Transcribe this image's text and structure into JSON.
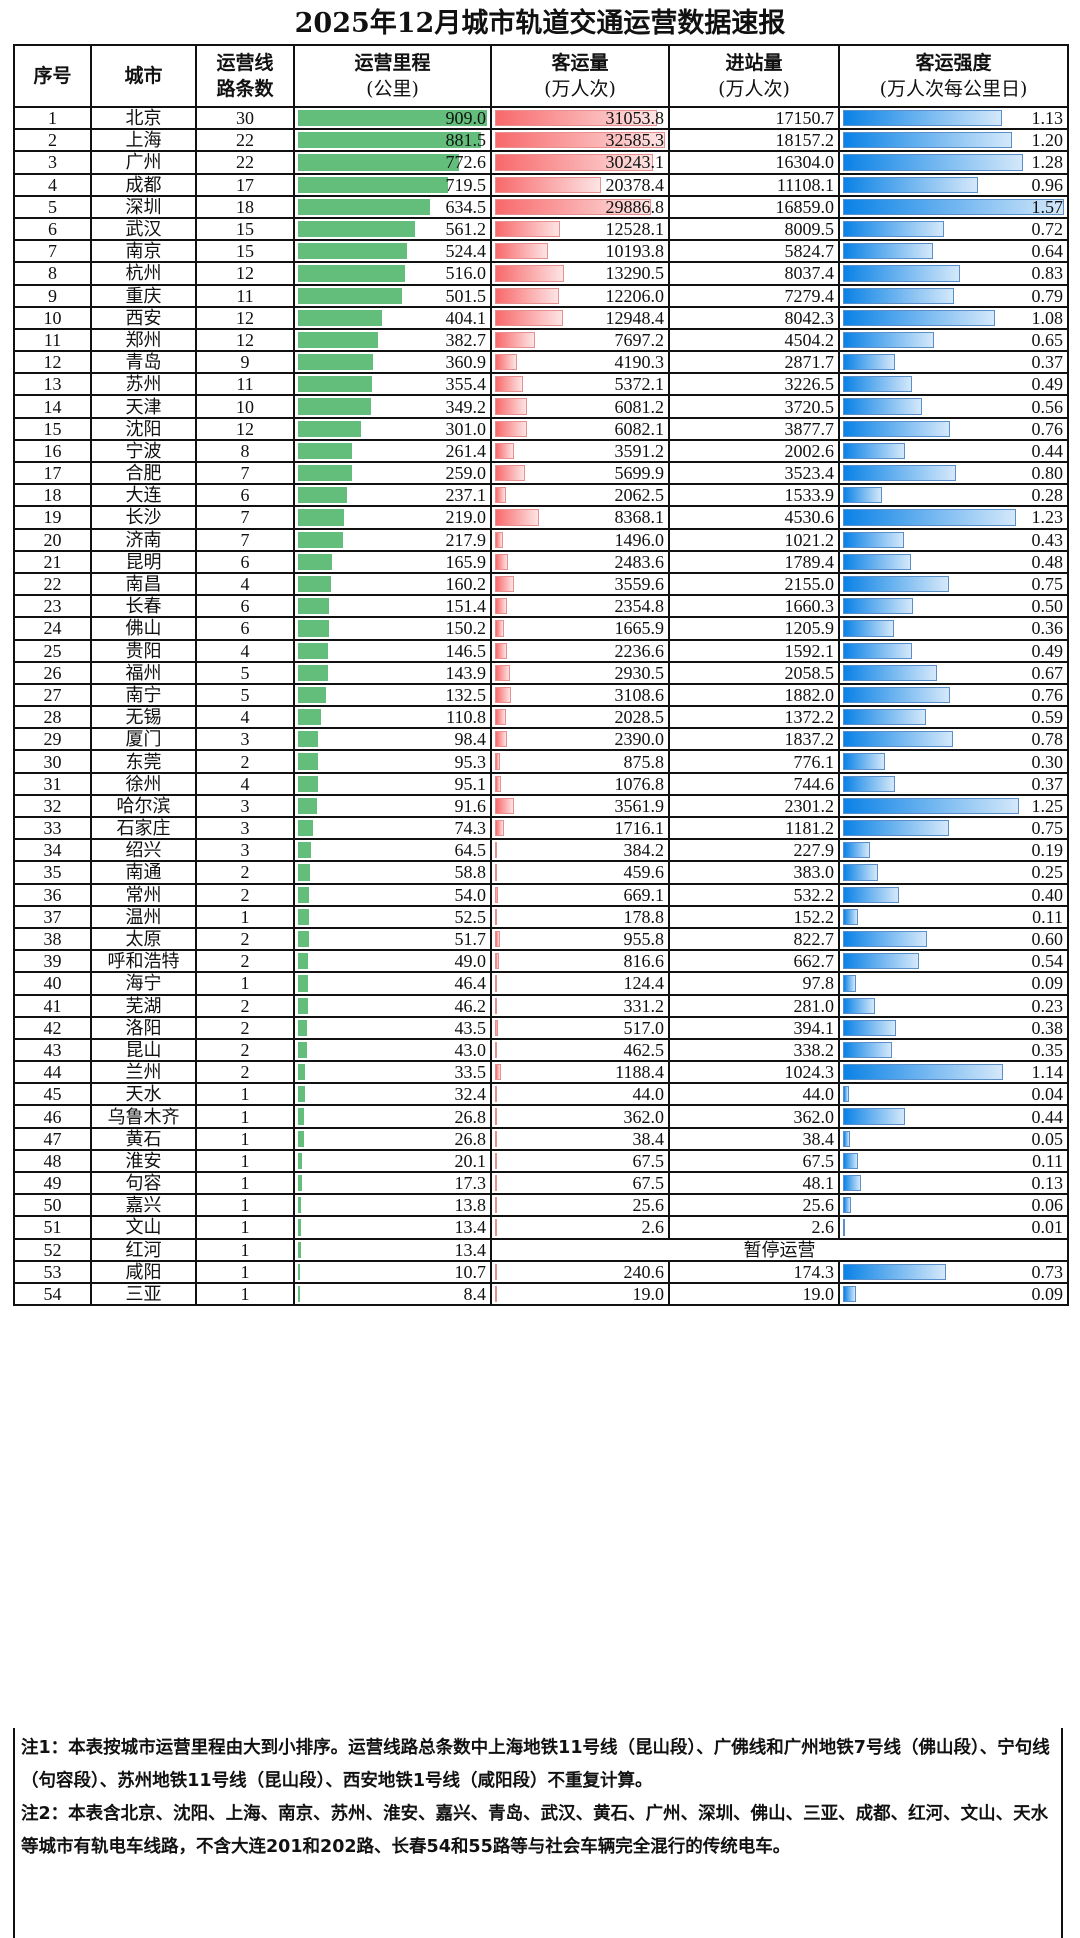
{
  "title": "2025年12月城市轨道交通运营数据速报",
  "headers": {
    "index": "序号",
    "city": "城市",
    "lines_1": "运营线",
    "lines_2": "路条数",
    "length_1": "运营里程",
    "length_2": "(公里)",
    "ridership_1": "客运量",
    "ridership_2": "(万人次)",
    "entries_1": "进站量",
    "entries_2": "(万人次)",
    "intensity_1": "客运强度",
    "intensity_2": "(万人次每公里日)"
  },
  "colors": {
    "length_bar": "#63BE7B",
    "ridership_bar": "#F8696B",
    "intensity_bar": "#0A82E6"
  },
  "bar_max": {
    "length": 909.0,
    "ridership": 32585.3,
    "intensity": 1.57
  },
  "suspended_label": "暂停运营",
  "rows": [
    {
      "idx": "1",
      "city": "北京",
      "lines": "30",
      "length": "909.0",
      "ridership": "31053.8",
      "entries": "17150.7",
      "intensity": "1.13"
    },
    {
      "idx": "2",
      "city": "上海",
      "lines": "22",
      "length": "881.5",
      "ridership": "32585.3",
      "entries": "18157.2",
      "intensity": "1.20"
    },
    {
      "idx": "3",
      "city": "广州",
      "lines": "22",
      "length": "772.6",
      "ridership": "30243.1",
      "entries": "16304.0",
      "intensity": "1.28"
    },
    {
      "idx": "4",
      "city": "成都",
      "lines": "17",
      "length": "719.5",
      "ridership": "20378.4",
      "entries": "11108.1",
      "intensity": "0.96"
    },
    {
      "idx": "5",
      "city": "深圳",
      "lines": "18",
      "length": "634.5",
      "ridership": "29886.8",
      "entries": "16859.0",
      "intensity": "1.57"
    },
    {
      "idx": "6",
      "city": "武汉",
      "lines": "15",
      "length": "561.2",
      "ridership": "12528.1",
      "entries": "8009.5",
      "intensity": "0.72"
    },
    {
      "idx": "7",
      "city": "南京",
      "lines": "15",
      "length": "524.4",
      "ridership": "10193.8",
      "entries": "5824.7",
      "intensity": "0.64"
    },
    {
      "idx": "8",
      "city": "杭州",
      "lines": "12",
      "length": "516.0",
      "ridership": "13290.5",
      "entries": "8037.4",
      "intensity": "0.83"
    },
    {
      "idx": "9",
      "city": "重庆",
      "lines": "11",
      "length": "501.5",
      "ridership": "12206.0",
      "entries": "7279.4",
      "intensity": "0.79"
    },
    {
      "idx": "10",
      "city": "西安",
      "lines": "12",
      "length": "404.1",
      "ridership": "12948.4",
      "entries": "8042.3",
      "intensity": "1.08"
    },
    {
      "idx": "11",
      "city": "郑州",
      "lines": "12",
      "length": "382.7",
      "ridership": "7697.2",
      "entries": "4504.2",
      "intensity": "0.65"
    },
    {
      "idx": "12",
      "city": "青岛",
      "lines": "9",
      "length": "360.9",
      "ridership": "4190.3",
      "entries": "2871.7",
      "intensity": "0.37"
    },
    {
      "idx": "13",
      "city": "苏州",
      "lines": "11",
      "length": "355.4",
      "ridership": "5372.1",
      "entries": "3226.5",
      "intensity": "0.49"
    },
    {
      "idx": "14",
      "city": "天津",
      "lines": "10",
      "length": "349.2",
      "ridership": "6081.2",
      "entries": "3720.5",
      "intensity": "0.56"
    },
    {
      "idx": "15",
      "city": "沈阳",
      "lines": "12",
      "length": "301.0",
      "ridership": "6082.1",
      "entries": "3877.7",
      "intensity": "0.76"
    },
    {
      "idx": "16",
      "city": "宁波",
      "lines": "8",
      "length": "261.4",
      "ridership": "3591.2",
      "entries": "2002.6",
      "intensity": "0.44"
    },
    {
      "idx": "17",
      "city": "合肥",
      "lines": "7",
      "length": "259.0",
      "ridership": "5699.9",
      "entries": "3523.4",
      "intensity": "0.80"
    },
    {
      "idx": "18",
      "city": "大连",
      "lines": "6",
      "length": "237.1",
      "ridership": "2062.5",
      "entries": "1533.9",
      "intensity": "0.28"
    },
    {
      "idx": "19",
      "city": "长沙",
      "lines": "7",
      "length": "219.0",
      "ridership": "8368.1",
      "entries": "4530.6",
      "intensity": "1.23"
    },
    {
      "idx": "20",
      "city": "济南",
      "lines": "7",
      "length": "217.9",
      "ridership": "1496.0",
      "entries": "1021.2",
      "intensity": "0.43"
    },
    {
      "idx": "21",
      "city": "昆明",
      "lines": "6",
      "length": "165.9",
      "ridership": "2483.6",
      "entries": "1789.4",
      "intensity": "0.48"
    },
    {
      "idx": "22",
      "city": "南昌",
      "lines": "4",
      "length": "160.2",
      "ridership": "3559.6",
      "entries": "2155.0",
      "intensity": "0.75"
    },
    {
      "idx": "23",
      "city": "长春",
      "lines": "6",
      "length": "151.4",
      "ridership": "2354.8",
      "entries": "1660.3",
      "intensity": "0.50"
    },
    {
      "idx": "24",
      "city": "佛山",
      "lines": "6",
      "length": "150.2",
      "ridership": "1665.9",
      "entries": "1205.9",
      "intensity": "0.36"
    },
    {
      "idx": "25",
      "city": "贵阳",
      "lines": "4",
      "length": "146.5",
      "ridership": "2236.6",
      "entries": "1592.1",
      "intensity": "0.49"
    },
    {
      "idx": "26",
      "city": "福州",
      "lines": "5",
      "length": "143.9",
      "ridership": "2930.5",
      "entries": "2058.5",
      "intensity": "0.67"
    },
    {
      "idx": "27",
      "city": "南宁",
      "lines": "5",
      "length": "132.5",
      "ridership": "3108.6",
      "entries": "1882.0",
      "intensity": "0.76"
    },
    {
      "idx": "28",
      "city": "无锡",
      "lines": "4",
      "length": "110.8",
      "ridership": "2028.5",
      "entries": "1372.2",
      "intensity": "0.59"
    },
    {
      "idx": "29",
      "city": "厦门",
      "lines": "3",
      "length": "98.4",
      "ridership": "2390.0",
      "entries": "1837.2",
      "intensity": "0.78"
    },
    {
      "idx": "30",
      "city": "东莞",
      "lines": "2",
      "length": "95.3",
      "ridership": "875.8",
      "entries": "776.1",
      "intensity": "0.30"
    },
    {
      "idx": "31",
      "city": "徐州",
      "lines": "4",
      "length": "95.1",
      "ridership": "1076.8",
      "entries": "744.6",
      "intensity": "0.37"
    },
    {
      "idx": "32",
      "city": "哈尔滨",
      "lines": "3",
      "length": "91.6",
      "ridership": "3561.9",
      "entries": "2301.2",
      "intensity": "1.25"
    },
    {
      "idx": "33",
      "city": "石家庄",
      "lines": "3",
      "length": "74.3",
      "ridership": "1716.1",
      "entries": "1181.2",
      "intensity": "0.75"
    },
    {
      "idx": "34",
      "city": "绍兴",
      "lines": "3",
      "length": "64.5",
      "ridership": "384.2",
      "entries": "227.9",
      "intensity": "0.19"
    },
    {
      "idx": "35",
      "city": "南通",
      "lines": "2",
      "length": "58.8",
      "ridership": "459.6",
      "entries": "383.0",
      "intensity": "0.25"
    },
    {
      "idx": "36",
      "city": "常州",
      "lines": "2",
      "length": "54.0",
      "ridership": "669.1",
      "entries": "532.2",
      "intensity": "0.40"
    },
    {
      "idx": "37",
      "city": "温州",
      "lines": "1",
      "length": "52.5",
      "ridership": "178.8",
      "entries": "152.2",
      "intensity": "0.11"
    },
    {
      "idx": "38",
      "city": "太原",
      "lines": "2",
      "length": "51.7",
      "ridership": "955.8",
      "entries": "822.7",
      "intensity": "0.60"
    },
    {
      "idx": "39",
      "city": "呼和浩特",
      "lines": "2",
      "length": "49.0",
      "ridership": "816.6",
      "entries": "662.7",
      "intensity": "0.54"
    },
    {
      "idx": "40",
      "city": "海宁",
      "lines": "1",
      "length": "46.4",
      "ridership": "124.4",
      "entries": "97.8",
      "intensity": "0.09"
    },
    {
      "idx": "41",
      "city": "芜湖",
      "lines": "2",
      "length": "46.2",
      "ridership": "331.2",
      "entries": "281.0",
      "intensity": "0.23"
    },
    {
      "idx": "42",
      "city": "洛阳",
      "lines": "2",
      "length": "43.5",
      "ridership": "517.0",
      "entries": "394.1",
      "intensity": "0.38"
    },
    {
      "idx": "43",
      "city": "昆山",
      "lines": "2",
      "length": "43.0",
      "ridership": "462.5",
      "entries": "338.2",
      "intensity": "0.35"
    },
    {
      "idx": "44",
      "city": "兰州",
      "lines": "2",
      "length": "33.5",
      "ridership": "1188.4",
      "entries": "1024.3",
      "intensity": "1.14"
    },
    {
      "idx": "45",
      "city": "天水",
      "lines": "1",
      "length": "32.4",
      "ridership": "44.0",
      "entries": "44.0",
      "intensity": "0.04"
    },
    {
      "idx": "46",
      "city": "乌鲁木齐",
      "lines": "1",
      "length": "26.8",
      "ridership": "362.0",
      "entries": "362.0",
      "intensity": "0.44"
    },
    {
      "idx": "47",
      "city": "黄石",
      "lines": "1",
      "length": "26.8",
      "ridership": "38.4",
      "entries": "38.4",
      "intensity": "0.05"
    },
    {
      "idx": "48",
      "city": "淮安",
      "lines": "1",
      "length": "20.1",
      "ridership": "67.5",
      "entries": "67.5",
      "intensity": "0.11"
    },
    {
      "idx": "49",
      "city": "句容",
      "lines": "1",
      "length": "17.3",
      "ridership": "67.5",
      "entries": "48.1",
      "intensity": "0.13"
    },
    {
      "idx": "50",
      "city": "嘉兴",
      "lines": "1",
      "length": "13.8",
      "ridership": "25.6",
      "entries": "25.6",
      "intensity": "0.06"
    },
    {
      "idx": "51",
      "city": "文山",
      "lines": "1",
      "length": "13.4",
      "ridership": "2.6",
      "entries": "2.6",
      "intensity": "0.01"
    },
    {
      "idx": "52",
      "city": "红河",
      "lines": "1",
      "length": "13.4",
      "suspended": true
    },
    {
      "idx": "53",
      "city": "咸阳",
      "lines": "1",
      "length": "10.7",
      "ridership": "240.6",
      "entries": "174.3",
      "intensity": "0.73"
    },
    {
      "idx": "54",
      "city": "三亚",
      "lines": "1",
      "length": "8.4",
      "ridership": "19.0",
      "entries": "19.0",
      "intensity": "0.09"
    }
  ],
  "notes": {
    "note1": "注1：本表按城市运营里程由大到小排序。运营线路总条数中上海地铁11号线（昆山段）、广佛线和广州地铁7号线（佛山段）、宁句线（句容段）、苏州地铁11号线（昆山段）、西安地铁1号线（咸阳段）不重复计算。",
    "note2": "注2：本表含北京、沈阳、上海、南京、苏州、淮安、嘉兴、青岛、武汉、黄石、广州、深圳、佛山、三亚、成都、红河、文山、天水等城市有轨电车线路，不含大连201和202路、长春54和55路等与社会车辆完全混行的传统电车。"
  },
  "chart_data": {
    "type": "table",
    "title": "2025年12月城市轨道交通运营数据速报",
    "columns": [
      "序号",
      "城市",
      "运营线路条数",
      "运营里程(公里)",
      "客运量(万人次)",
      "进站量(万人次)",
      "客运强度(万人次每公里日)"
    ],
    "databar_columns": [
      "运营里程(公里)",
      "客运量(万人次)",
      "客运强度(万人次每公里日)"
    ],
    "categories": [
      "北京",
      "上海",
      "广州",
      "成都",
      "深圳",
      "武汉",
      "南京",
      "杭州",
      "重庆",
      "西安",
      "郑州",
      "青岛",
      "苏州",
      "天津",
      "沈阳",
      "宁波",
      "合肥",
      "大连",
      "长沙",
      "济南",
      "昆明",
      "南昌",
      "长春",
      "佛山",
      "贵阳",
      "福州",
      "南宁",
      "无锡",
      "厦门",
      "东莞",
      "徐州",
      "哈尔滨",
      "石家庄",
      "绍兴",
      "南通",
      "常州",
      "温州",
      "太原",
      "呼和浩特",
      "海宁",
      "芜湖",
      "洛阳",
      "昆山",
      "兰州",
      "天水",
      "乌鲁木齐",
      "黄石",
      "淮安",
      "句容",
      "嘉兴",
      "文山",
      "红河",
      "咸阳",
      "三亚"
    ],
    "series": [
      {
        "name": "运营线路条数",
        "values": [
          30,
          22,
          22,
          17,
          18,
          15,
          15,
          12,
          11,
          12,
          12,
          9,
          11,
          10,
          12,
          8,
          7,
          6,
          7,
          7,
          6,
          4,
          6,
          6,
          4,
          5,
          5,
          4,
          3,
          2,
          4,
          3,
          3,
          3,
          2,
          2,
          1,
          2,
          2,
          1,
          2,
          2,
          2,
          2,
          1,
          1,
          1,
          1,
          1,
          1,
          1,
          1,
          1,
          1
        ]
      },
      {
        "name": "运营里程(公里)",
        "values": [
          909.0,
          881.5,
          772.6,
          719.5,
          634.5,
          561.2,
          524.4,
          516.0,
          501.5,
          404.1,
          382.7,
          360.9,
          355.4,
          349.2,
          301.0,
          261.4,
          259.0,
          237.1,
          219.0,
          217.9,
          165.9,
          160.2,
          151.4,
          150.2,
          146.5,
          143.9,
          132.5,
          110.8,
          98.4,
          95.3,
          95.1,
          91.6,
          74.3,
          64.5,
          58.8,
          54.0,
          52.5,
          51.7,
          49.0,
          46.4,
          46.2,
          43.5,
          43.0,
          33.5,
          32.4,
          26.8,
          26.8,
          20.1,
          17.3,
          13.8,
          13.4,
          13.4,
          10.7,
          8.4
        ]
      },
      {
        "name": "客运量(万人次)",
        "values": [
          31053.8,
          32585.3,
          30243.1,
          20378.4,
          29886.8,
          12528.1,
          10193.8,
          13290.5,
          12206.0,
          12948.4,
          7697.2,
          4190.3,
          5372.1,
          6081.2,
          6082.1,
          3591.2,
          5699.9,
          2062.5,
          8368.1,
          1496.0,
          2483.6,
          3559.6,
          2354.8,
          1665.9,
          2236.6,
          2930.5,
          3108.6,
          2028.5,
          2390.0,
          875.8,
          1076.8,
          3561.9,
          1716.1,
          384.2,
          459.6,
          669.1,
          178.8,
          955.8,
          816.6,
          124.4,
          331.2,
          517.0,
          462.5,
          1188.4,
          44.0,
          362.0,
          38.4,
          67.5,
          67.5,
          25.6,
          2.6,
          null,
          240.6,
          19.0
        ]
      },
      {
        "name": "进站量(万人次)",
        "values": [
          17150.7,
          18157.2,
          16304.0,
          11108.1,
          16859.0,
          8009.5,
          5824.7,
          8037.4,
          7279.4,
          8042.3,
          4504.2,
          2871.7,
          3226.5,
          3720.5,
          3877.7,
          2002.6,
          3523.4,
          1533.9,
          4530.6,
          1021.2,
          1789.4,
          2155.0,
          1660.3,
          1205.9,
          1592.1,
          2058.5,
          1882.0,
          1372.2,
          1837.2,
          776.1,
          744.6,
          2301.2,
          1181.2,
          227.9,
          383.0,
          532.2,
          152.2,
          822.7,
          662.7,
          97.8,
          281.0,
          394.1,
          338.2,
          1024.3,
          44.0,
          362.0,
          38.4,
          67.5,
          48.1,
          25.6,
          2.6,
          null,
          174.3,
          19.0
        ]
      },
      {
        "name": "客运强度(万人次每公里日)",
        "values": [
          1.13,
          1.2,
          1.28,
          0.96,
          1.57,
          0.72,
          0.64,
          0.83,
          0.79,
          1.08,
          0.65,
          0.37,
          0.49,
          0.56,
          0.76,
          0.44,
          0.8,
          0.28,
          1.23,
          0.43,
          0.48,
          0.75,
          0.5,
          0.36,
          0.49,
          0.67,
          0.76,
          0.59,
          0.78,
          0.3,
          0.37,
          1.25,
          0.75,
          0.19,
          0.25,
          0.4,
          0.11,
          0.6,
          0.54,
          0.09,
          0.23,
          0.38,
          0.35,
          1.14,
          0.04,
          0.44,
          0.05,
          0.11,
          0.13,
          0.06,
          0.01,
          null,
          0.73,
          0.09
        ]
      }
    ],
    "annotations": [
      "红河: 暂停运营"
    ]
  }
}
